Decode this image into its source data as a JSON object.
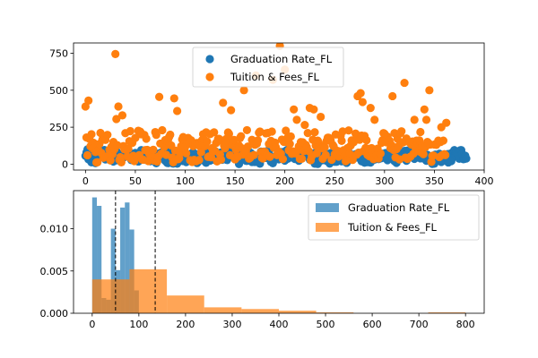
{
  "chart_data": [
    {
      "type": "scatter",
      "xlim": [
        -12,
        400
      ],
      "ylim": [
        -40,
        820
      ],
      "xticks": [
        0,
        50,
        100,
        150,
        200,
        250,
        300,
        350,
        400
      ],
      "yticks": [
        0,
        250,
        500,
        750
      ],
      "xtick_labels": [
        "0",
        "50",
        "100",
        "150",
        "200",
        "250",
        "300",
        "350",
        "400"
      ],
      "ytick_labels": [
        "0",
        "250",
        "500",
        "750"
      ],
      "legend": {
        "placement": "top-center"
      },
      "grid": false,
      "series": [
        {
          "name": "Graduation Rate_FL",
          "color": "#1f77b4",
          "n_points": 383,
          "value_range": [
            0,
            100
          ],
          "typical_range": [
            20,
            80
          ]
        },
        {
          "name": "Tuition & Fees_FL",
          "color": "#ff7f0e",
          "n_points": 363,
          "value_range": [
            0,
            800
          ],
          "typical_range": [
            50,
            200
          ],
          "outliers": [
            [
              0,
              390
            ],
            [
              3,
              430
            ],
            [
              30,
              745
            ],
            [
              33,
              390
            ],
            [
              31,
              305
            ],
            [
              37,
              330
            ],
            [
              74,
              455
            ],
            [
              89,
              445
            ],
            [
              92,
              360
            ],
            [
              138,
              415
            ],
            [
              146,
              365
            ],
            [
              159,
              500
            ],
            [
              171,
              600
            ],
            [
              188,
              570
            ],
            [
              195,
              800
            ],
            [
              200,
              640
            ],
            [
              209,
              370
            ],
            [
              212,
              300
            ],
            [
              220,
              265
            ],
            [
              225,
              380
            ],
            [
              229,
              370
            ],
            [
              236,
              320
            ],
            [
              273,
              460
            ],
            [
              276,
              480
            ],
            [
              278,
              420
            ],
            [
              286,
              380
            ],
            [
              290,
              300
            ],
            [
              308,
              460
            ],
            [
              320,
              550
            ],
            [
              330,
              300
            ],
            [
              340,
              370
            ],
            [
              342,
              300
            ],
            [
              345,
              500
            ],
            [
              357,
              250
            ],
            [
              362,
              280
            ]
          ]
        }
      ]
    },
    {
      "type": "histogram",
      "xlim": [
        -40,
        840
      ],
      "ylim": [
        0,
        0.0145
      ],
      "xticks": [
        0,
        100,
        200,
        300,
        400,
        500,
        600,
        700,
        800
      ],
      "yticks": [
        0.0,
        0.005,
        0.01
      ],
      "xtick_labels": [
        "0",
        "100",
        "200",
        "300",
        "400",
        "500",
        "600",
        "700",
        "800"
      ],
      "ytick_labels": [
        "0.000",
        "0.005",
        "0.010"
      ],
      "legend": {
        "placement": "top-right"
      },
      "grid": false,
      "vlines": [
        50,
        135
      ],
      "series": [
        {
          "name": "Graduation Rate_FL",
          "color": "#1f77b4",
          "alpha": 0.7,
          "bins": [
            [
              0,
              10,
              0.0137
            ],
            [
              10,
              20,
              0.0127
            ],
            [
              20,
              30,
              0.0018
            ],
            [
              30,
              40,
              0.0016
            ],
            [
              40,
              50,
              0.01
            ],
            [
              50,
              60,
              0.0051
            ],
            [
              60,
              70,
              0.0125
            ],
            [
              70,
              80,
              0.0131
            ],
            [
              80,
              90,
              0.0099
            ],
            [
              90,
              100,
              0.0027
            ]
          ]
        },
        {
          "name": "Tuition & Fees_FL",
          "color": "#ff7f0e",
          "alpha": 0.7,
          "bins": [
            [
              0,
              80,
              0.004
            ],
            [
              80,
              160,
              0.0052
            ],
            [
              160,
              240,
              0.0021
            ],
            [
              240,
              320,
              0.0007
            ],
            [
              320,
              400,
              0.0005
            ],
            [
              400,
              480,
              0.0003
            ],
            [
              480,
              560,
              0.0001
            ],
            [
              560,
              640,
              0.0
            ],
            [
              640,
              720,
              0.0
            ],
            [
              720,
              800,
              0.0001
            ]
          ]
        }
      ]
    }
  ]
}
